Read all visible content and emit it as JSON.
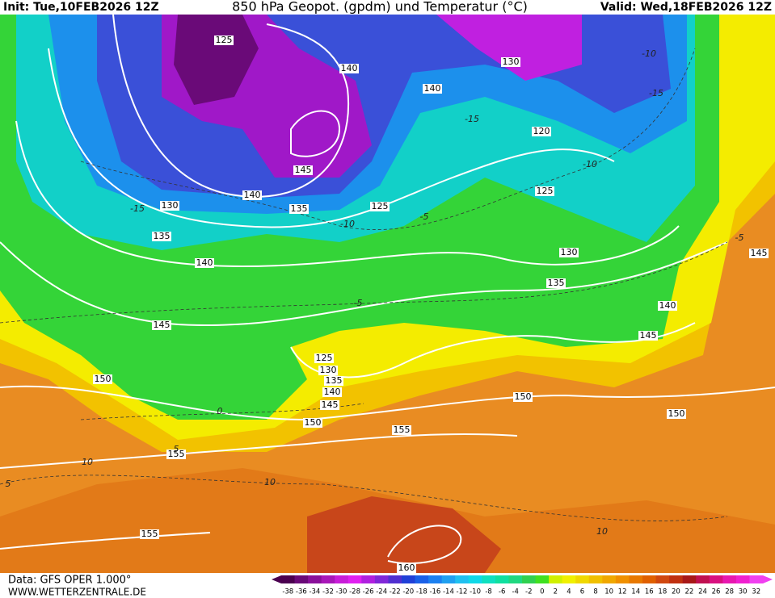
{
  "header": {
    "init": "Init: Tue,10FEB2026 12Z",
    "title": "850 hPa Geopot. (gpdm) und Temperatur (°C)",
    "valid": "Valid: Wed,18FEB2026 12Z"
  },
  "footer": {
    "source": "Data: GFS OPER 1.000°",
    "site": "WWW.WETTERZENTRALE.DE"
  },
  "geopotential_labels": [
    "125",
    "140",
    "130",
    "140",
    "120",
    "145",
    "140",
    "130",
    "135",
    "125",
    "125",
    "135",
    "140",
    "130",
    "135",
    "145",
    "140",
    "145",
    "145",
    "125",
    "130",
    "135",
    "140",
    "145",
    "150",
    "150",
    "150",
    "150",
    "155",
    "155",
    "155",
    "160"
  ],
  "temperature_labels": [
    "-10",
    "-15",
    "-15",
    "-10",
    "-15",
    "-10",
    "-5",
    "-5",
    "-5",
    "0",
    "5",
    "10",
    "10",
    "10",
    "5"
  ],
  "legend": {
    "labels": [
      -38,
      -36,
      -34,
      -32,
      -30,
      -28,
      -26,
      -24,
      -22,
      -20,
      -18,
      -16,
      -14,
      -12,
      -10,
      -8,
      -6,
      -4,
      -2,
      0,
      2,
      4,
      6,
      8,
      10,
      12,
      14,
      16,
      18,
      20,
      22,
      24,
      26,
      28,
      30,
      32
    ],
    "colors": [
      "#4b0050",
      "#6a0a78",
      "#8a109a",
      "#a818b8",
      "#c81ed8",
      "#e020f0",
      "#b020e0",
      "#8028d8",
      "#5030d0",
      "#2040d8",
      "#1a60e8",
      "#1c80f0",
      "#20a0f0",
      "#20c0f0",
      "#10d8e8",
      "#10e0c0",
      "#10e0a0",
      "#20d880",
      "#30d050",
      "#40e020",
      "#d0f000",
      "#f0f000",
      "#f0d800",
      "#f0c000",
      "#f0a800",
      "#f09000",
      "#e87800",
      "#e06000",
      "#d04810",
      "#c03010",
      "#a81818",
      "#c01050",
      "#d81080",
      "#e818b0",
      "#f020d0",
      "#f040f0"
    ]
  }
}
